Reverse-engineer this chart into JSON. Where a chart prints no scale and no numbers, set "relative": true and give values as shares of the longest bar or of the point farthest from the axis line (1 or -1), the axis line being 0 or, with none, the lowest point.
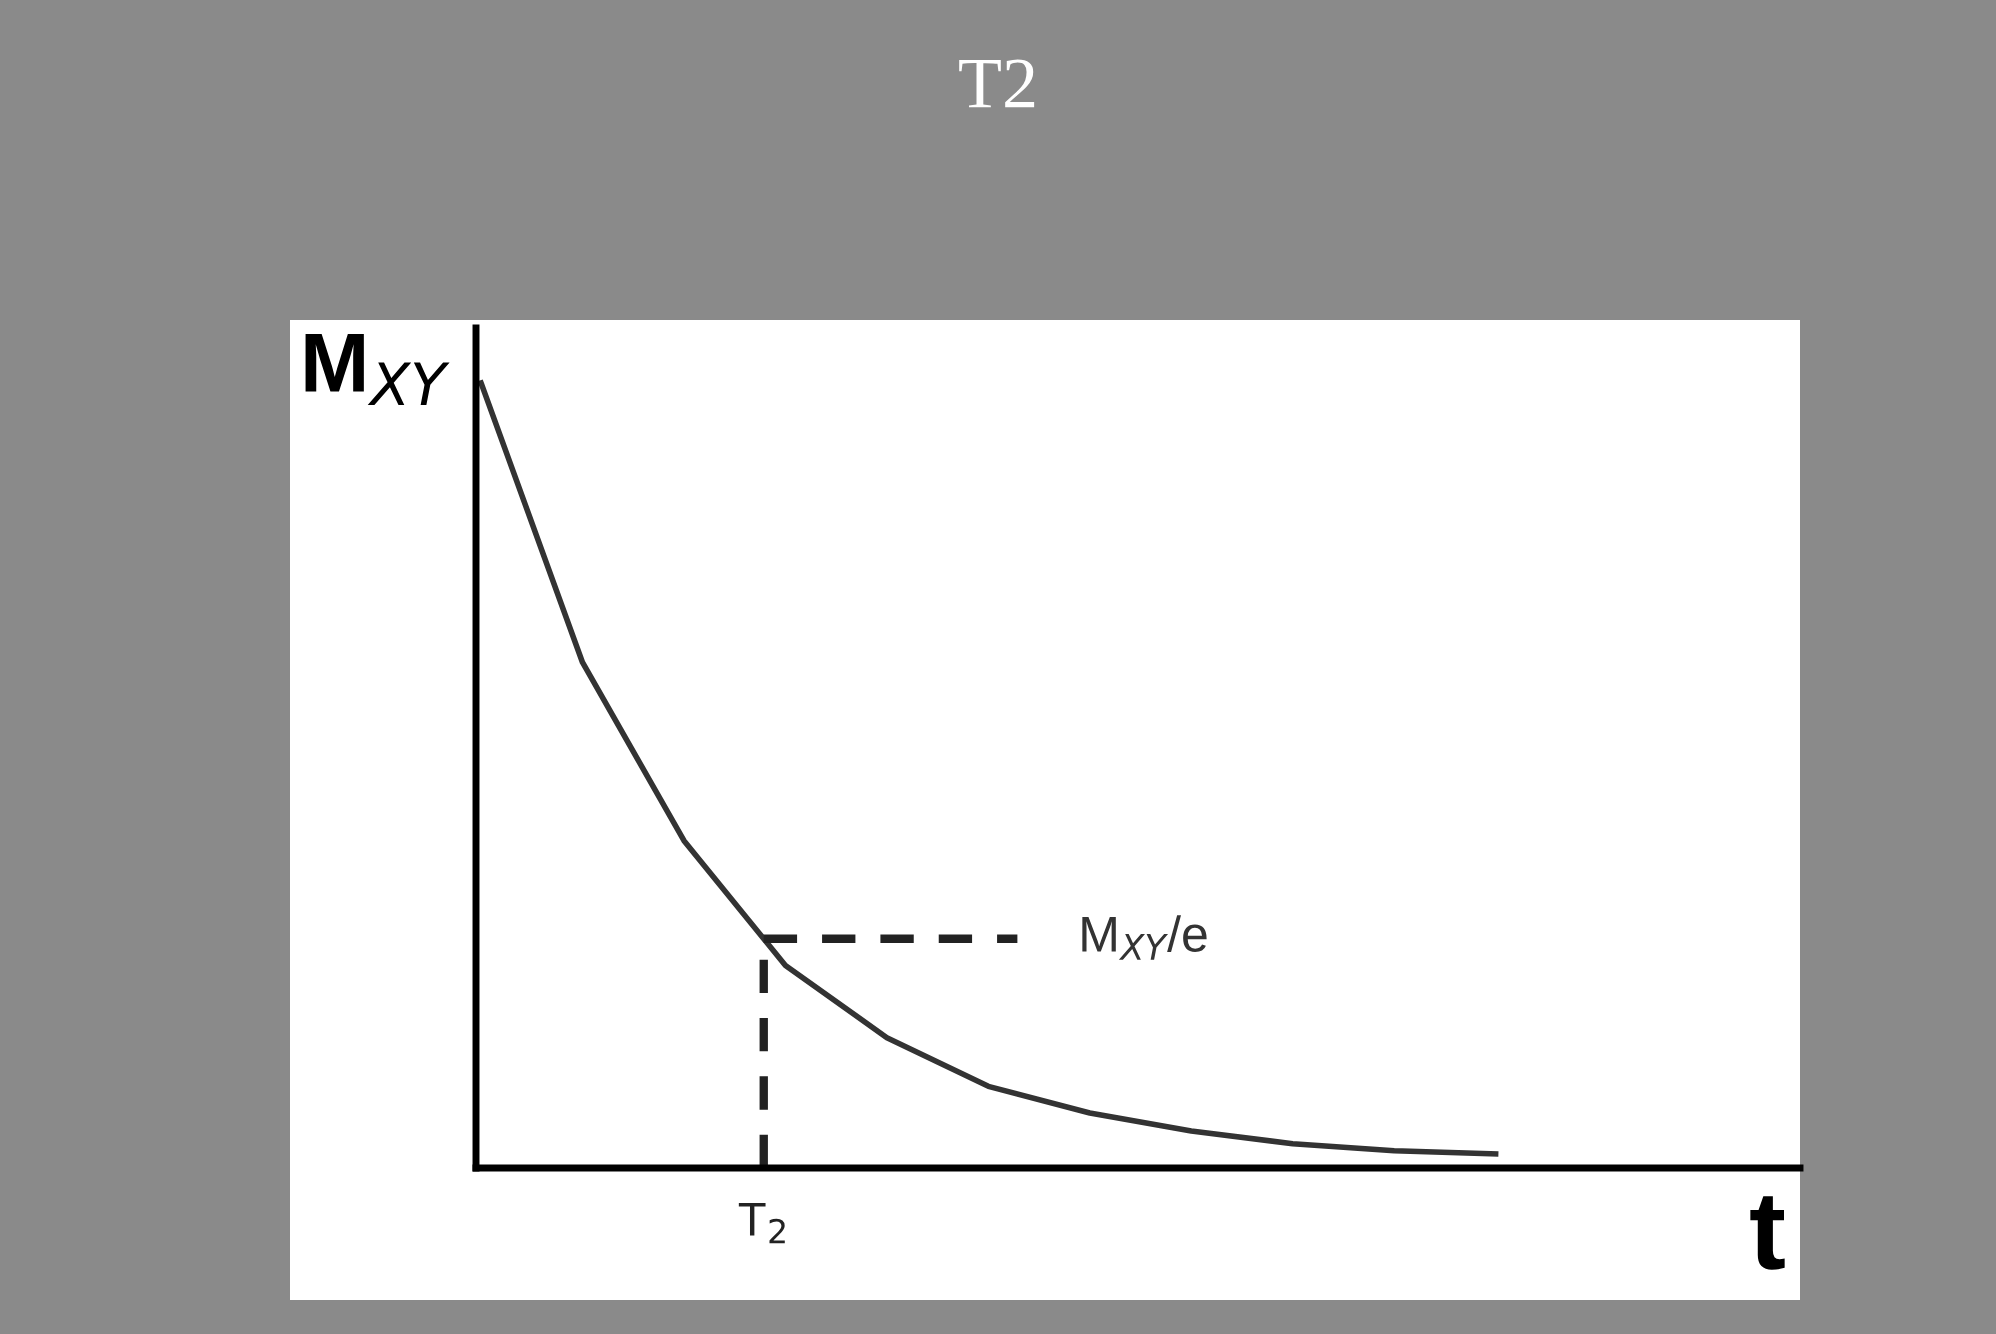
{
  "chart_data": {
    "type": "line",
    "title": "T2",
    "xlabel": "t",
    "ylabel": "M$_{XY}$",
    "relative": true,
    "categories": [
      null,
      null,
      null,
      null,
      null,
      null,
      null,
      null,
      null,
      null,
      null,
      null,
      null,
      null
    ],
    "series": [
      {
        "color": "#333333",
        "values": [
          1.0,
          0.644,
          0.417,
          0.258,
          0.166,
          0.104,
          0.07,
          0.047,
          0.031,
          0.022,
          0.018,
          null,
          null,
          null
        ]
      }
    ],
    "ref_lines": [
      {
        "axis": "y",
        "value": 0.292,
        "label": "M$_{XY}$/e",
        "line_style": "dashed",
        "color": "#222222"
      }
    ],
    "annotations": [
      "T$_{2}$"
    ],
    "marker": "none",
    "line_style": "solid"
  }
}
